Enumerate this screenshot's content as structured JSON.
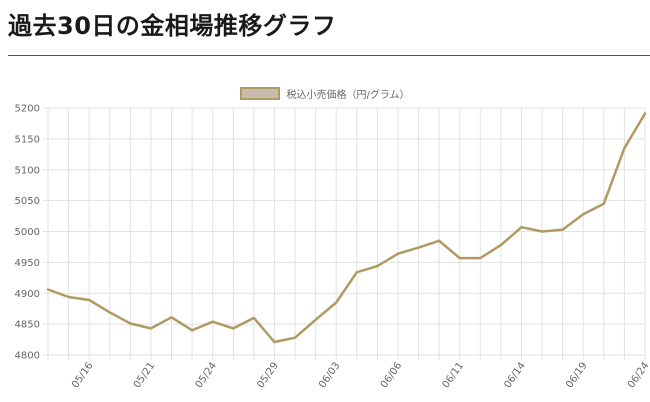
{
  "page": {
    "title": "過去30日の金相場推移グラフ"
  },
  "colors": {
    "line": "#b19a62",
    "swatch_fill": "#c8bcac",
    "grid": "#e2e2e2",
    "tick_text": "#666666"
  },
  "chart_data": {
    "type": "line",
    "title": "",
    "xlabel": "",
    "ylabel": "",
    "grid": true,
    "legend_position": "top-center",
    "ylim": [
      4800,
      5200
    ],
    "yticks": [
      4800,
      4850,
      4900,
      4950,
      5000,
      5050,
      5100,
      5150,
      5200
    ],
    "x": [
      "05/14",
      "05/15",
      "05/16",
      "05/17",
      "05/20",
      "05/21",
      "05/22",
      "05/23",
      "05/24",
      "05/27",
      "05/28",
      "05/29",
      "05/30",
      "05/31",
      "06/03",
      "06/04",
      "06/05",
      "06/06",
      "06/07",
      "06/10",
      "06/11",
      "06/12",
      "06/13",
      "06/14",
      "06/17",
      "06/18",
      "06/19",
      "06/20",
      "06/21",
      "06/24"
    ],
    "xtick_labels": [
      "05/16",
      "05/21",
      "05/24",
      "05/29",
      "06/03",
      "06/06",
      "06/11",
      "06/14",
      "06/19",
      "06/24"
    ],
    "series": [
      {
        "name": "税込小売価格（円/グラム）",
        "values": [
          4906,
          4894,
          4889,
          4869,
          4851,
          4843,
          4861,
          4840,
          4854,
          4843,
          4860,
          4821,
          4828,
          4857,
          4885,
          4934,
          4944,
          4964,
          4974,
          4985,
          4957,
          4957,
          4978,
          5007,
          5000,
          5003,
          5028,
          5045,
          5135,
          5191
        ]
      }
    ]
  }
}
